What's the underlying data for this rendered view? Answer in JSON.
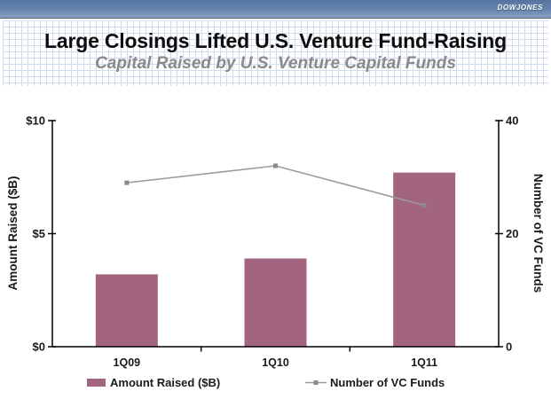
{
  "header": {
    "logo": "DOWJONES",
    "title": "Large Closings Lifted U.S. Venture Fund-Raising",
    "subtitle": "Capital Raised by U.S. Venture Capital Funds"
  },
  "chart_data": {
    "type": "bar",
    "subtype": "combo-bar-line-dual-axis",
    "title": "Capital Raised by U.S. Venture Capital Funds",
    "categories": [
      "1Q09",
      "1Q10",
      "1Q11"
    ],
    "series": [
      {
        "name": "Amount Raised ($B)",
        "type": "bar",
        "axis": "left",
        "values": [
          3.2,
          3.9,
          7.7
        ],
        "color": "#a2647f"
      },
      {
        "name": "Number of VC Funds",
        "type": "line",
        "axis": "right",
        "values": [
          29,
          32,
          25
        ],
        "color": "#9b9b9b",
        "marker_color": "#8a8a8a"
      }
    ],
    "left_axis": {
      "label": "Amount Raised ($B)",
      "min": 0,
      "max": 10,
      "tick_values": [
        0,
        5,
        10
      ],
      "tick_labels": [
        "$0",
        "$5",
        "$10"
      ]
    },
    "right_axis": {
      "label": "Number of VC Funds",
      "min": 0,
      "max": 40,
      "tick_values": [
        0,
        20,
        40
      ],
      "tick_labels": [
        "0",
        "20",
        "40"
      ]
    },
    "legend": {
      "position": "bottom",
      "items": [
        "Amount Raised ($B)",
        "Number of VC Funds"
      ]
    },
    "grid": false,
    "axis_color": "#000000",
    "text_color": "#1a1a1a"
  },
  "colors": {
    "topbar_gradient_top": "#56749f",
    "topbar_gradient_bottom": "#8aa1c3",
    "grid_pattern_line": "#d2dcef",
    "subtitle_gray": "#8a8a8a",
    "bar_mauve": "#a2647f",
    "line_gray": "#9b9b9b"
  }
}
